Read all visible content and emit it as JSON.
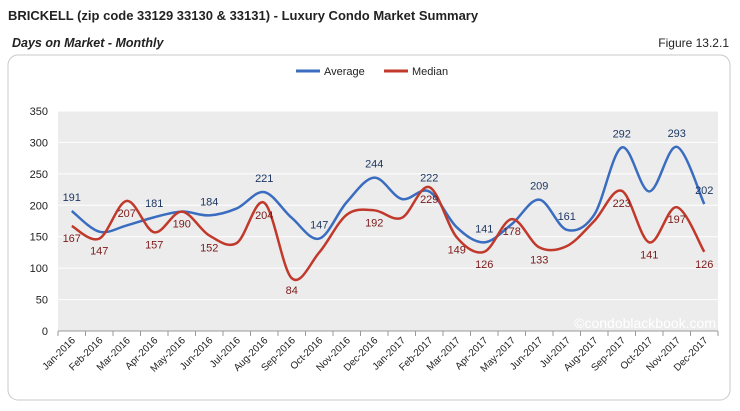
{
  "chart_data": {
    "type": "line",
    "title": "BRICKELL (zip code 33129 33130 & 33131) - Luxury Condo Market Summary",
    "subtitle": "Days on Market - Monthly",
    "figure_label": "Figure 13.2.1",
    "watermark": "©condoblackbook.com",
    "categories": [
      "Jan-2016",
      "Feb-2016",
      "Mar-2016",
      "Apr-2016",
      "May-2016",
      "Jun-2016",
      "Jul-2016",
      "Aug-2016",
      "Sep-2016",
      "Oct-2016",
      "Nov-2016",
      "Dec-2016",
      "Jan-2017",
      "Feb-2017",
      "Mar-2017",
      "Apr-2017",
      "May-2017",
      "Jun-2017",
      "Jul-2017",
      "Aug-2017",
      "Sep-2017",
      "Oct-2017",
      "Nov-2017",
      "Dec-2017"
    ],
    "series": [
      {
        "name": "Average",
        "color": "#3a6cc0",
        "values": [
          191,
          158,
          168,
          181,
          190,
          184,
          195,
          221,
          180,
          147,
          205,
          244,
          210,
          222,
          165,
          141,
          170,
          209,
          161,
          185,
          292,
          222,
          293,
          202
        ],
        "value_labels": [
          "191",
          null,
          null,
          "181",
          null,
          "184",
          null,
          "221",
          null,
          "147",
          null,
          "244",
          null,
          "222",
          null,
          "141",
          null,
          "209",
          "161",
          null,
          "292",
          null,
          "293",
          "202"
        ],
        "label_color": "#1f3864"
      },
      {
        "name": "Median",
        "color": "#c0392b",
        "values": [
          167,
          147,
          207,
          157,
          190,
          152,
          140,
          204,
          84,
          125,
          185,
          192,
          180,
          229,
          149,
          126,
          178,
          133,
          135,
          175,
          223,
          141,
          197,
          126
        ],
        "value_labels": [
          "167",
          "147",
          "207",
          "157",
          "190",
          "152",
          null,
          "204",
          "84",
          null,
          null,
          "192",
          null,
          "229",
          "149",
          "126",
          "178",
          "133",
          null,
          null,
          "223",
          "141",
          "197",
          "126"
        ],
        "label_color": "#7b1a1a"
      }
    ],
    "ylim": [
      0,
      350
    ],
    "yticks": [
      0,
      50,
      100,
      150,
      200,
      250,
      300,
      350
    ],
    "grid": true,
    "legend": "top"
  }
}
